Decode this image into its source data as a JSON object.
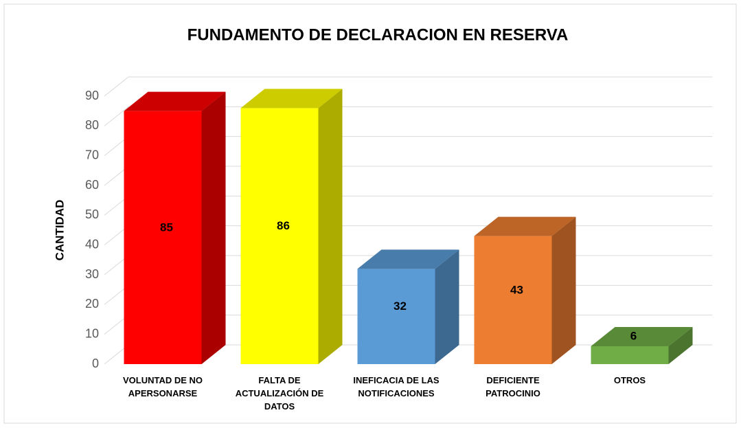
{
  "chart_data": {
    "type": "bar3d",
    "title": "FUNDAMENTO DE DECLARACION EN RESERVA",
    "y_label": "CANTIDAD",
    "categories": [
      "VOLUNTAD DE NO APERSONARSE",
      "FALTA DE ACTUALIZACIÓN DE DATOS",
      "INEFICACIA DE LAS NOTIFICACIONES",
      "DEFICIENTE PATROCINIO",
      "OTROS"
    ],
    "values": [
      85,
      86,
      32,
      43,
      6
    ],
    "colors": [
      "#ff0000",
      "#ffff00",
      "#5b9bd5",
      "#ed7d31",
      "#70ad47"
    ],
    "ylim": [
      0,
      90
    ],
    "yticks": [
      0,
      10,
      20,
      30,
      40,
      50,
      60,
      70,
      80,
      90
    ],
    "grid": true
  }
}
